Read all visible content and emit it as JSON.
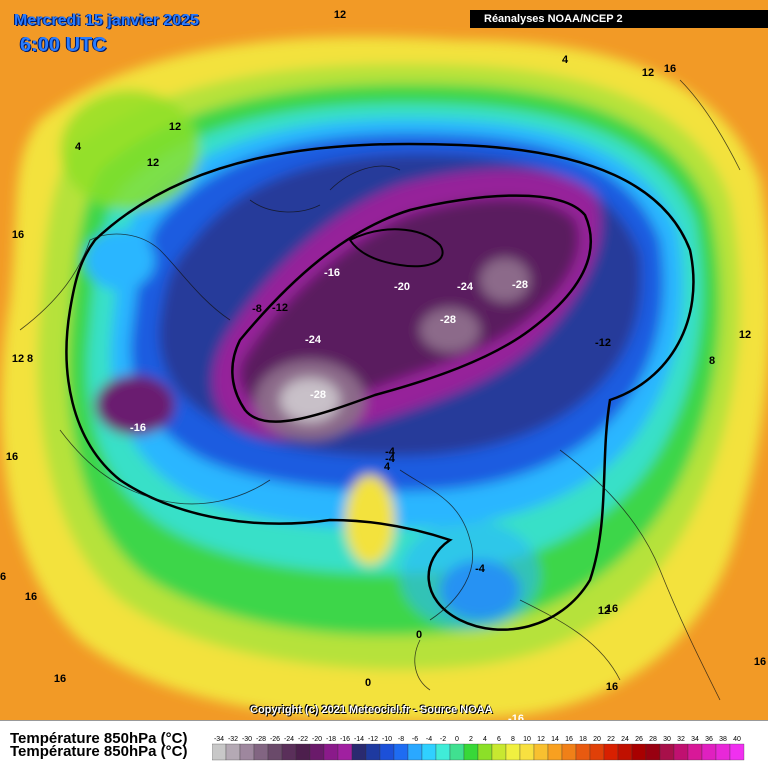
{
  "header": {
    "date": "Mercredi 15 janvier 2025",
    "time": "6:00 UTC",
    "source": "Réanalyses NOAA/NCEP 2"
  },
  "footer": {
    "copyright": "Copyright (c) 2021 Meteociel.fr - Source NOAA",
    "variable": "Température 850hPa (°C)"
  },
  "legend": {
    "values": [
      "-34",
      "-32",
      "-30",
      "-28",
      "-26",
      "-24",
      "-22",
      "-20",
      "-18",
      "-16",
      "-14",
      "-12",
      "-10",
      "-8",
      "-6",
      "-4",
      "-2",
      "0",
      "2",
      "4",
      "6",
      "8",
      "10",
      "12",
      "14",
      "16",
      "18",
      "20",
      "22",
      "24",
      "26",
      "28",
      "30",
      "32",
      "34",
      "36",
      "38",
      "40"
    ],
    "colors": [
      "#c8c8c8",
      "#b4a9b4",
      "#9e879e",
      "#826582",
      "#6a4a6a",
      "#5a2f5a",
      "#4d1f4d",
      "#6a1a6a",
      "#8a1a8a",
      "#a020a0",
      "#2a2a70",
      "#1e3aa0",
      "#1c50d8",
      "#1e6cf2",
      "#2aa8ff",
      "#30d0ff",
      "#40ecd8",
      "#40e090",
      "#38d838",
      "#8ce028",
      "#c8e830",
      "#f0f040",
      "#f8e040",
      "#f8c030",
      "#f8a020",
      "#f08018",
      "#e85a10",
      "#e04008",
      "#d82000",
      "#c01000",
      "#a80000",
      "#980010",
      "#a8104a",
      "#c01070",
      "#d81898",
      "#e020c0",
      "#e828d8",
      "#f030f0"
    ]
  },
  "map_labels": [
    {
      "text": "12",
      "kind": "iso"
    },
    {
      "text": "4",
      "kind": "iso"
    },
    {
      "text": "12",
      "kind": "iso"
    },
    {
      "text": "16",
      "kind": "iso"
    },
    {
      "text": "4",
      "kind": "iso"
    },
    {
      "text": "12",
      "kind": "iso"
    },
    {
      "text": "12",
      "kind": "iso"
    },
    {
      "text": "16",
      "kind": "iso"
    },
    {
      "text": "-16",
      "kind": "iso"
    },
    {
      "text": "-20",
      "kind": "iso"
    },
    {
      "text": "-24",
      "kind": "iso"
    },
    {
      "text": "-28",
      "kind": "iso"
    },
    {
      "text": "-8",
      "kind": "iso"
    },
    {
      "text": "-12",
      "kind": "iso"
    },
    {
      "text": "-28",
      "kind": "iso"
    },
    {
      "text": "-24",
      "kind": "iso"
    },
    {
      "text": "-12",
      "kind": "iso"
    },
    {
      "text": "12",
      "kind": "iso"
    },
    {
      "text": "12",
      "kind": "iso"
    },
    {
      "text": "8",
      "kind": "iso"
    },
    {
      "text": "-28",
      "kind": "iso"
    },
    {
      "text": "-16",
      "kind": "iso"
    },
    {
      "text": "16",
      "kind": "iso"
    },
    {
      "text": "-4",
      "kind": "iso"
    },
    {
      "text": "-4",
      "kind": "iso"
    },
    {
      "text": "4",
      "kind": "iso"
    },
    {
      "text": "8",
      "kind": "iso"
    },
    {
      "text": "-4",
      "kind": "iso"
    },
    {
      "text": "16",
      "kind": "iso"
    },
    {
      "text": "12",
      "kind": "iso"
    },
    {
      "text": "0",
      "kind": "iso"
    },
    {
      "text": "0",
      "kind": "iso"
    },
    {
      "text": "16",
      "kind": "iso"
    },
    {
      "text": "16",
      "kind": "iso"
    },
    {
      "text": "16",
      "kind": "iso"
    },
    {
      "text": "-16",
      "kind": "iso"
    },
    {
      "text": "16",
      "kind": "iso"
    },
    {
      "text": "6",
      "kind": "iso"
    }
  ]
}
